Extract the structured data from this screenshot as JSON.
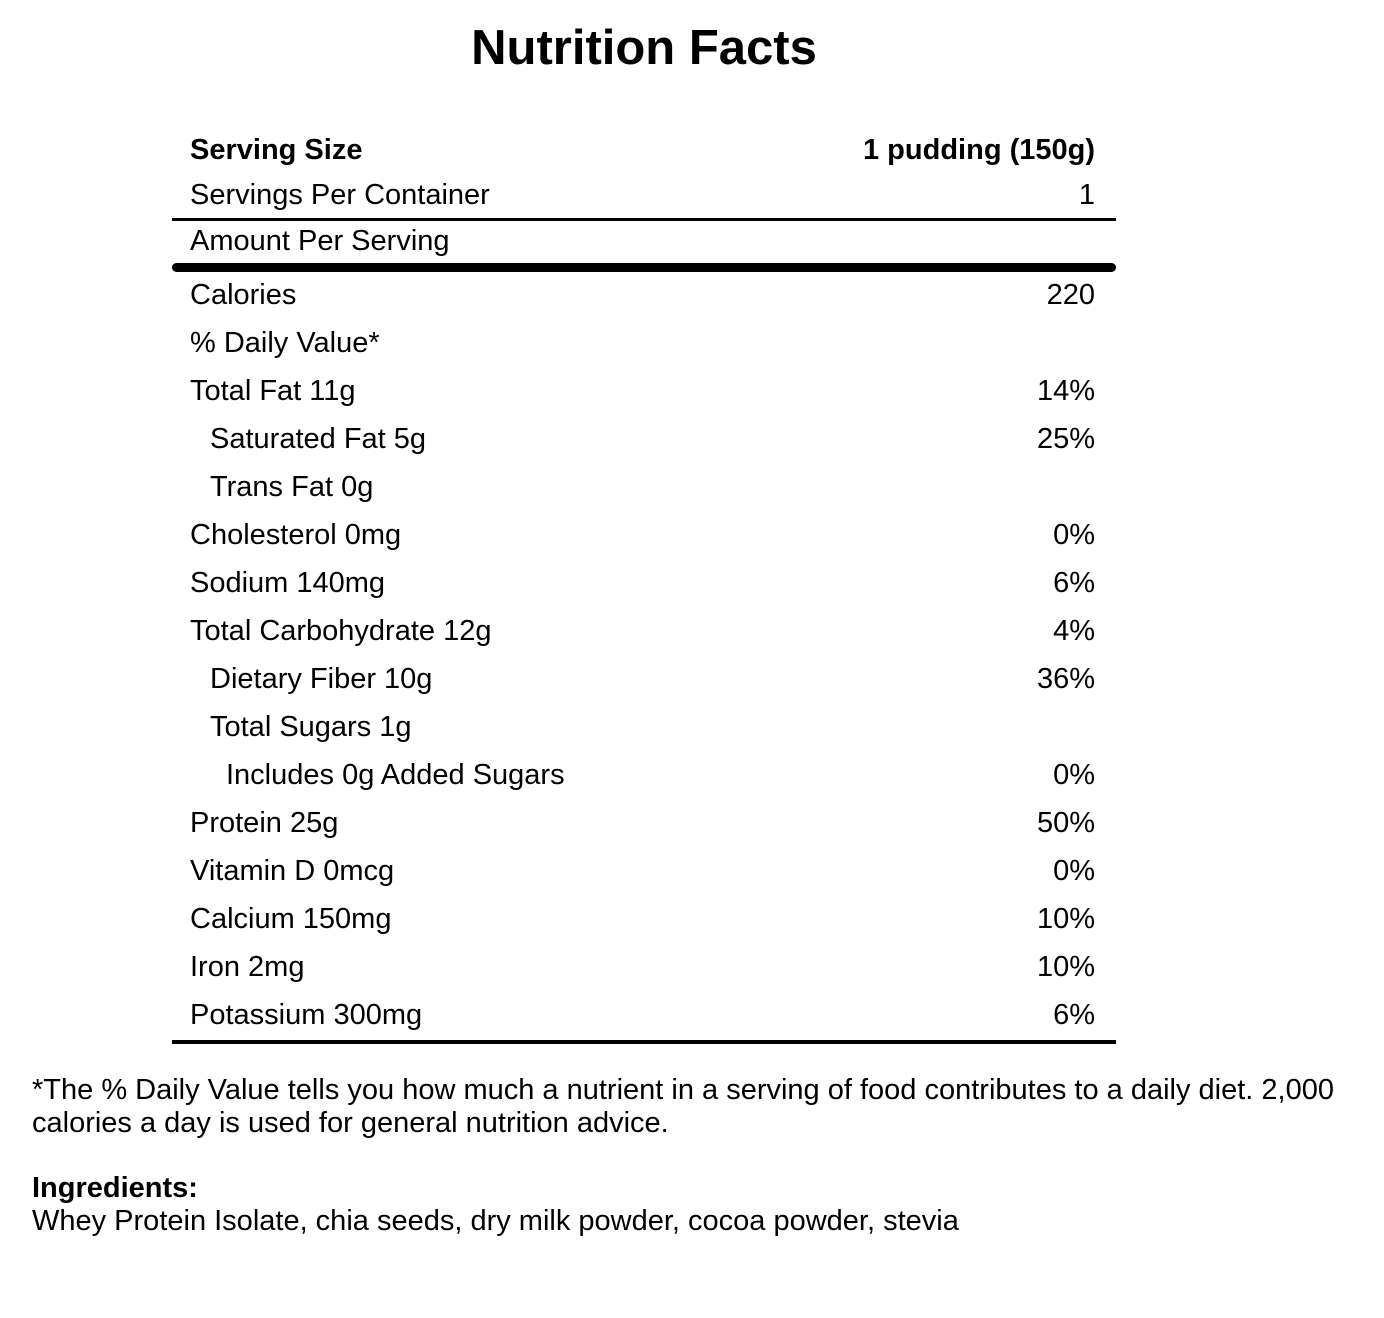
{
  "page": {
    "title": "Nutrition Facts"
  },
  "panel": {
    "rows": [
      {
        "label": "Serving Size",
        "value": "1 pudding (150g)",
        "bold": true,
        "indent": 0,
        "rule": "none"
      },
      {
        "label": "Servings Per Container",
        "value": "1",
        "bold": false,
        "indent": 0,
        "rule": "thin"
      },
      {
        "label": "Amount Per Serving",
        "value": "",
        "bold": false,
        "indent": 0,
        "rule": "thick"
      },
      {
        "label": "Calories",
        "value": "220",
        "bold": false,
        "indent": 0,
        "rule": "none"
      },
      {
        "label": "% Daily Value*",
        "value": "",
        "bold": false,
        "indent": 0,
        "rule": "none"
      },
      {
        "label": "Total Fat 11g",
        "value": "14%",
        "bold": false,
        "indent": 0,
        "rule": "none"
      },
      {
        "label": "Saturated Fat 5g",
        "value": "25%",
        "bold": false,
        "indent": 1,
        "rule": "none"
      },
      {
        "label": "Trans Fat 0g",
        "value": "",
        "bold": false,
        "indent": 1,
        "rule": "none"
      },
      {
        "label": "Cholesterol 0mg",
        "value": "0%",
        "bold": false,
        "indent": 0,
        "rule": "none"
      },
      {
        "label": "Sodium 140mg",
        "value": "6%",
        "bold": false,
        "indent": 0,
        "rule": "none"
      },
      {
        "label": "Total Carbohydrate 12g",
        "value": "4%",
        "bold": false,
        "indent": 0,
        "rule": "none"
      },
      {
        "label": "Dietary Fiber 10g",
        "value": "36%",
        "bold": false,
        "indent": 1,
        "rule": "none"
      },
      {
        "label": "Total Sugars 1g",
        "value": "",
        "bold": false,
        "indent": 1,
        "rule": "none"
      },
      {
        "label": "Includes 0g Added Sugars",
        "value": "0%",
        "bold": false,
        "indent": 2,
        "rule": "none"
      },
      {
        "label": "Protein 25g",
        "value": "50%",
        "bold": false,
        "indent": 0,
        "rule": "none"
      },
      {
        "label": "Vitamin D 0mcg",
        "value": "0%",
        "bold": false,
        "indent": 0,
        "rule": "none"
      },
      {
        "label": "Calcium 150mg",
        "value": "10%",
        "bold": false,
        "indent": 0,
        "rule": "none"
      },
      {
        "label": "Iron 2mg",
        "value": "10%",
        "bold": false,
        "indent": 0,
        "rule": "none"
      },
      {
        "label": "Potassium 300mg",
        "value": "6%",
        "bold": false,
        "indent": 0,
        "rule": "none"
      }
    ]
  },
  "footnote": "*The % Daily Value tells you how much a nutrient in a serving of food contributes to a daily diet. 2,000 calories a day is used for general nutrition advice.",
  "ingredients": {
    "heading": "Ingredients:",
    "text": "Whey Protein Isolate, chia seeds, dry milk powder, cocoa powder, stevia"
  },
  "colors": {
    "text": "#000000",
    "background": "#ffffff",
    "divider": "#000000"
  }
}
